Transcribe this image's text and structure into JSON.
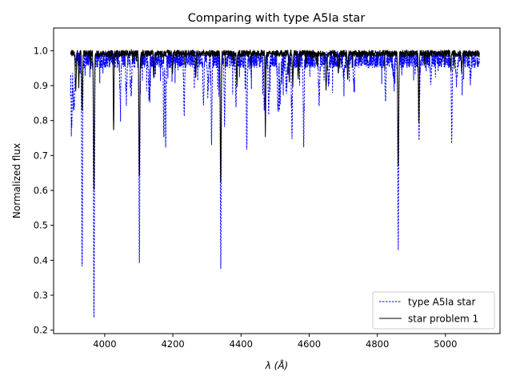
{
  "chart_data": {
    "type": "line",
    "title": "Comparing with type A5Ia star",
    "xlabel": "λ (Å)",
    "ylabel": "Normalized flux",
    "xlim": [
      3850,
      5160
    ],
    "ylim": [
      0.19,
      1.065
    ],
    "x_ticks": [
      4000,
      4200,
      4400,
      4600,
      4800,
      5000
    ],
    "y_ticks": [
      0.2,
      0.3,
      0.4,
      0.5,
      0.6,
      0.7,
      0.8,
      0.9,
      1.0
    ],
    "x_tick_labels": [
      "4000",
      "4200",
      "4400",
      "4600",
      "4800",
      "5000"
    ],
    "y_tick_labels": [
      "0.2",
      "0.3",
      "0.4",
      "0.5",
      "0.6",
      "0.7",
      "0.8",
      "0.9",
      "1.0"
    ],
    "grid": false,
    "legend_position": "lower-right",
    "series": [
      {
        "name": "type A5Ia star",
        "color": "#0000ff",
        "style": "dashed",
        "x_range": [
          3900,
          5100
        ],
        "baseline": 0.975,
        "noise": 0.025,
        "lines": [
          {
            "x": 3903,
            "depth": 0.2,
            "width": 1.5
          },
          {
            "x": 3910,
            "depth": 0.15,
            "width": 2
          },
          {
            "x": 3933.7,
            "depth": 0.6,
            "width": 1.2
          },
          {
            "x": 3968.5,
            "depth": 0.74,
            "width": 1.3
          },
          {
            "x": 4101.7,
            "depth": 0.59,
            "width": 1.2
          },
          {
            "x": 4340.5,
            "depth": 0.58,
            "width": 1.2
          },
          {
            "x": 4861.3,
            "depth": 0.54,
            "width": 1.2
          },
          {
            "x": 4921.9,
            "depth": 0.2,
            "width": 1.2
          },
          {
            "x": 5018.4,
            "depth": 0.24,
            "width": 1.2
          },
          {
            "x": 4045.8,
            "depth": 0.13,
            "width": 1.5
          },
          {
            "x": 4063.6,
            "depth": 0.12,
            "width": 1.5
          },
          {
            "x": 4077.7,
            "depth": 0.1,
            "width": 1.5
          },
          {
            "x": 4130,
            "depth": 0.1,
            "width": 1.5
          },
          {
            "x": 4173.5,
            "depth": 0.22,
            "width": 1.2
          },
          {
            "x": 4178.9,
            "depth": 0.23,
            "width": 1.2
          },
          {
            "x": 4233.2,
            "depth": 0.18,
            "width": 1.2
          },
          {
            "x": 4290,
            "depth": 0.13,
            "width": 1.5
          },
          {
            "x": 4303.2,
            "depth": 0.1,
            "width": 1.5
          },
          {
            "x": 4313.6,
            "depth": 0.24,
            "width": 1.2
          },
          {
            "x": 4351.8,
            "depth": 0.19,
            "width": 1.2
          },
          {
            "x": 4385.4,
            "depth": 0.12,
            "width": 1.5
          },
          {
            "x": 4416.8,
            "depth": 0.25,
            "width": 1.2
          },
          {
            "x": 4468.5,
            "depth": 0.13,
            "width": 1.5
          },
          {
            "x": 4481.2,
            "depth": 0.14,
            "width": 1.5
          },
          {
            "x": 4508.3,
            "depth": 0.13,
            "width": 1.5
          },
          {
            "x": 4515.3,
            "depth": 0.12,
            "width": 1.5
          },
          {
            "x": 4534,
            "depth": 0.09,
            "width": 1.5
          },
          {
            "x": 4549.5,
            "depth": 0.22,
            "width": 1.2
          },
          {
            "x": 4583.8,
            "depth": 0.24,
            "width": 1.2
          },
          {
            "x": 4629.3,
            "depth": 0.12,
            "width": 1.5
          },
          {
            "x": 4657,
            "depth": 0.08,
            "width": 1.5
          },
          {
            "x": 4702,
            "depth": 0.06,
            "width": 1.5
          },
          {
            "x": 4731,
            "depth": 0.07,
            "width": 1.5
          },
          {
            "x": 4824,
            "depth": 0.11,
            "width": 1.5
          },
          {
            "x": 4848,
            "depth": 0.06,
            "width": 1.5
          },
          {
            "x": 4924,
            "depth": 0.07,
            "width": 1.5
          },
          {
            "x": 4957,
            "depth": 0.06,
            "width": 1.5
          },
          {
            "x": 5032,
            "depth": 0.08,
            "width": 1.5
          },
          {
            "x": 5050,
            "depth": 0.06,
            "width": 1.5
          },
          {
            "x": 5073,
            "depth": 0.05,
            "width": 1.5
          }
        ]
      },
      {
        "name": "star problem 1",
        "color": "#000000",
        "style": "solid",
        "x_range": [
          3900,
          5100
        ],
        "baseline": 0.992,
        "noise": 0.01,
        "lines": [
          {
            "x": 3915,
            "depth": 0.1,
            "width": 1.5
          },
          {
            "x": 3924,
            "depth": 0.09,
            "width": 1.2
          },
          {
            "x": 3933.7,
            "depth": 0.16,
            "width": 1.2
          },
          {
            "x": 3968.5,
            "depth": 0.38,
            "width": 1.3
          },
          {
            "x": 4026.2,
            "depth": 0.21,
            "width": 1
          },
          {
            "x": 4101.7,
            "depth": 0.35,
            "width": 1.3
          },
          {
            "x": 4340.5,
            "depth": 0.37,
            "width": 1.3
          },
          {
            "x": 4471.5,
            "depth": 0.23,
            "width": 1
          },
          {
            "x": 4861.3,
            "depth": 0.33,
            "width": 1.3
          },
          {
            "x": 4921.9,
            "depth": 0.21,
            "width": 1
          },
          {
            "x": 4387.9,
            "depth": 0.09,
            "width": 1.2
          },
          {
            "x": 4713.1,
            "depth": 0.08,
            "width": 1.2
          },
          {
            "x": 4541.6,
            "depth": 0.08,
            "width": 1.2
          },
          {
            "x": 4685.7,
            "depth": 0.06,
            "width": 1.2
          },
          {
            "x": 4026.2,
            "depth": 0.02,
            "width": 1
          },
          {
            "x": 4143.8,
            "depth": 0.07,
            "width": 1.2
          },
          {
            "x": 4199,
            "depth": 0.05,
            "width": 1.2
          },
          {
            "x": 4267,
            "depth": 0.07,
            "width": 1.2
          },
          {
            "x": 4552,
            "depth": 0.09,
            "width": 1.2
          },
          {
            "x": 4567.8,
            "depth": 0.07,
            "width": 1.2
          },
          {
            "x": 4649,
            "depth": 0.08,
            "width": 1.2
          },
          {
            "x": 4650.8,
            "depth": 0.05,
            "width": 1.2
          },
          {
            "x": 5015.7,
            "depth": 0.05,
            "width": 1.2
          },
          {
            "x": 5047.7,
            "depth": 0.05,
            "width": 1.2
          }
        ]
      }
    ]
  }
}
